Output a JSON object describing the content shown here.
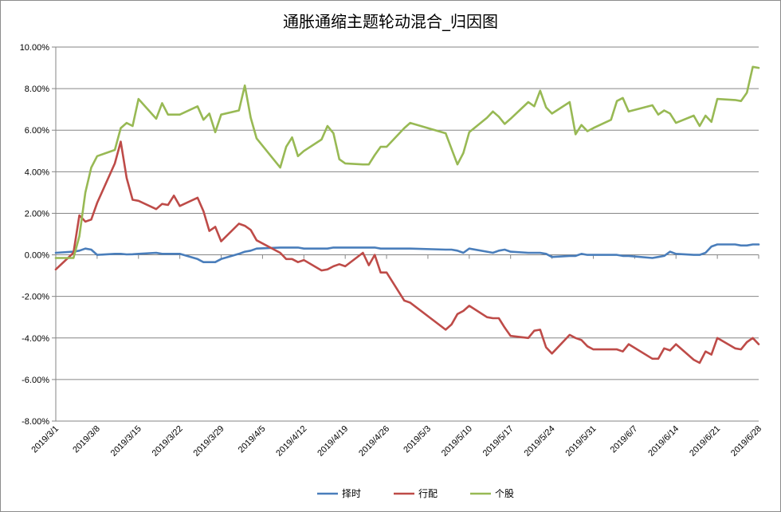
{
  "chart_data": {
    "type": "line",
    "title": "通胀通缩主题轮动混合_归因图",
    "xlabel": "",
    "ylabel": "",
    "ylim": [
      -8,
      10
    ],
    "y_ticks": [
      10,
      8,
      6,
      4,
      2,
      0,
      -2,
      -4,
      -6,
      -8
    ],
    "y_tick_labels": [
      "10.00%",
      "8.00%",
      "6.00%",
      "4.00%",
      "2.00%",
      "0.00%",
      "-2.00%",
      "-4.00%",
      "-6.00%",
      "-8.00%"
    ],
    "x_range": [
      "2019/3/1",
      "2019/6/28"
    ],
    "x_tick_labels": [
      "2019/3/1",
      "2019/3/8",
      "2019/3/15",
      "2019/3/22",
      "2019/3/29",
      "2019/4/5",
      "2019/4/12",
      "2019/4/19",
      "2019/4/26",
      "2019/5/3",
      "2019/5/10",
      "2019/5/17",
      "2019/5/24",
      "2019/5/31",
      "2019/6/7",
      "2019/6/14",
      "2019/6/21",
      "2019/6/28"
    ],
    "grid": "horizontal",
    "legend_position": "bottom",
    "series": [
      {
        "name": "择时",
        "color": "#4a7ebb",
        "points": [
          [
            "2019/3/1",
            0.1
          ],
          [
            "2019/3/4",
            0.15
          ],
          [
            "2019/3/5",
            0.2
          ],
          [
            "2019/3/6",
            0.3
          ],
          [
            "2019/3/7",
            0.25
          ],
          [
            "2019/3/8",
            0.0
          ],
          [
            "2019/3/11",
            0.05
          ],
          [
            "2019/3/12",
            0.05
          ],
          [
            "2019/3/13",
            0.02
          ],
          [
            "2019/3/14",
            0.03
          ],
          [
            "2019/3/15",
            0.05
          ],
          [
            "2019/3/18",
            0.1
          ],
          [
            "2019/3/19",
            0.05
          ],
          [
            "2019/3/20",
            0.05
          ],
          [
            "2019/3/21",
            0.05
          ],
          [
            "2019/3/22",
            0.05
          ],
          [
            "2019/3/25",
            -0.2
          ],
          [
            "2019/3/26",
            -0.35
          ],
          [
            "2019/3/27",
            -0.35
          ],
          [
            "2019/3/28",
            -0.35
          ],
          [
            "2019/3/29",
            -0.2
          ],
          [
            "2019/4/1",
            0.05
          ],
          [
            "2019/4/2",
            0.15
          ],
          [
            "2019/4/3",
            0.2
          ],
          [
            "2019/4/4",
            0.3
          ],
          [
            "2019/4/8",
            0.35
          ],
          [
            "2019/4/9",
            0.35
          ],
          [
            "2019/4/10",
            0.35
          ],
          [
            "2019/4/11",
            0.35
          ],
          [
            "2019/4/12",
            0.3
          ],
          [
            "2019/4/15",
            0.3
          ],
          [
            "2019/4/16",
            0.3
          ],
          [
            "2019/4/17",
            0.35
          ],
          [
            "2019/4/18",
            0.35
          ],
          [
            "2019/4/19",
            0.35
          ],
          [
            "2019/4/22",
            0.35
          ],
          [
            "2019/4/23",
            0.35
          ],
          [
            "2019/4/24",
            0.35
          ],
          [
            "2019/4/25",
            0.3
          ],
          [
            "2019/4/26",
            0.3
          ],
          [
            "2019/4/29",
            0.3
          ],
          [
            "2019/4/30",
            0.3
          ],
          [
            "2019/5/6",
            0.25
          ],
          [
            "2019/5/7",
            0.25
          ],
          [
            "2019/5/8",
            0.2
          ],
          [
            "2019/5/9",
            0.1
          ],
          [
            "2019/5/10",
            0.3
          ],
          [
            "2019/5/13",
            0.15
          ],
          [
            "2019/5/14",
            0.1
          ],
          [
            "2019/5/15",
            0.2
          ],
          [
            "2019/5/16",
            0.25
          ],
          [
            "2019/5/17",
            0.15
          ],
          [
            "2019/5/20",
            0.1
          ],
          [
            "2019/5/21",
            0.1
          ],
          [
            "2019/5/22",
            0.1
          ],
          [
            "2019/5/23",
            0.05
          ],
          [
            "2019/5/24",
            -0.1
          ],
          [
            "2019/5/27",
            -0.05
          ],
          [
            "2019/5/28",
            -0.05
          ],
          [
            "2019/5/29",
            0.05
          ],
          [
            "2019/5/30",
            0.0
          ],
          [
            "2019/5/31",
            0.0
          ],
          [
            "2019/6/3",
            0.0
          ],
          [
            "2019/6/4",
            0.0
          ],
          [
            "2019/6/5",
            -0.05
          ],
          [
            "2019/6/6",
            -0.05
          ],
          [
            "2019/6/10",
            -0.15
          ],
          [
            "2019/6/11",
            -0.1
          ],
          [
            "2019/6/12",
            -0.05
          ],
          [
            "2019/6/13",
            0.15
          ],
          [
            "2019/6/14",
            0.05
          ],
          [
            "2019/6/17",
            0.0
          ],
          [
            "2019/6/18",
            0.0
          ],
          [
            "2019/6/19",
            0.1
          ],
          [
            "2019/6/20",
            0.4
          ],
          [
            "2019/6/21",
            0.5
          ],
          [
            "2019/6/24",
            0.5
          ],
          [
            "2019/6/25",
            0.45
          ],
          [
            "2019/6/26",
            0.45
          ],
          [
            "2019/6/27",
            0.5
          ],
          [
            "2019/6/28",
            0.5
          ]
        ]
      },
      {
        "name": "行配",
        "color": "#be4b48",
        "points": [
          [
            "2019/3/1",
            -0.7
          ],
          [
            "2019/3/4",
            0.1
          ],
          [
            "2019/3/5",
            1.9
          ],
          [
            "2019/3/6",
            1.6
          ],
          [
            "2019/3/7",
            1.7
          ],
          [
            "2019/3/8",
            2.5
          ],
          [
            "2019/3/11",
            4.4
          ],
          [
            "2019/3/12",
            5.45
          ],
          [
            "2019/3/13",
            3.7
          ],
          [
            "2019/3/14",
            2.65
          ],
          [
            "2019/3/15",
            2.6
          ],
          [
            "2019/3/18",
            2.2
          ],
          [
            "2019/3/19",
            2.45
          ],
          [
            "2019/3/20",
            2.4
          ],
          [
            "2019/3/21",
            2.85
          ],
          [
            "2019/3/22",
            2.35
          ],
          [
            "2019/3/25",
            2.75
          ],
          [
            "2019/3/26",
            2.1
          ],
          [
            "2019/3/27",
            1.15
          ],
          [
            "2019/3/28",
            1.35
          ],
          [
            "2019/3/29",
            0.65
          ],
          [
            "2019/4/1",
            1.5
          ],
          [
            "2019/4/2",
            1.4
          ],
          [
            "2019/4/3",
            1.2
          ],
          [
            "2019/4/4",
            0.7
          ],
          [
            "2019/4/8",
            0.1
          ],
          [
            "2019/4/9",
            -0.2
          ],
          [
            "2019/4/10",
            -0.2
          ],
          [
            "2019/4/11",
            -0.35
          ],
          [
            "2019/4/12",
            -0.25
          ],
          [
            "2019/4/15",
            -0.75
          ],
          [
            "2019/4/16",
            -0.7
          ],
          [
            "2019/4/17",
            -0.55
          ],
          [
            "2019/4/18",
            -0.45
          ],
          [
            "2019/4/19",
            -0.55
          ],
          [
            "2019/4/22",
            0.1
          ],
          [
            "2019/4/23",
            -0.5
          ],
          [
            "2019/4/24",
            0.0
          ],
          [
            "2019/4/25",
            -0.85
          ],
          [
            "2019/4/26",
            -0.85
          ],
          [
            "2019/4/29",
            -2.2
          ],
          [
            "2019/4/30",
            -2.3
          ],
          [
            "2019/5/6",
            -3.6
          ],
          [
            "2019/5/7",
            -3.35
          ],
          [
            "2019/5/8",
            -2.85
          ],
          [
            "2019/5/9",
            -2.7
          ],
          [
            "2019/5/10",
            -2.45
          ],
          [
            "2019/5/13",
            -3.0
          ],
          [
            "2019/5/14",
            -3.05
          ],
          [
            "2019/5/15",
            -3.05
          ],
          [
            "2019/5/16",
            -3.5
          ],
          [
            "2019/5/17",
            -3.9
          ],
          [
            "2019/5/20",
            -4.0
          ],
          [
            "2019/5/21",
            -3.65
          ],
          [
            "2019/5/22",
            -3.6
          ],
          [
            "2019/5/23",
            -4.45
          ],
          [
            "2019/5/24",
            -4.75
          ],
          [
            "2019/5/27",
            -3.85
          ],
          [
            "2019/5/28",
            -4.0
          ],
          [
            "2019/5/29",
            -4.1
          ],
          [
            "2019/5/30",
            -4.4
          ],
          [
            "2019/5/31",
            -4.55
          ],
          [
            "2019/6/3",
            -4.55
          ],
          [
            "2019/6/4",
            -4.55
          ],
          [
            "2019/6/5",
            -4.65
          ],
          [
            "2019/6/6",
            -4.3
          ],
          [
            "2019/6/10",
            -5.0
          ],
          [
            "2019/6/11",
            -5.0
          ],
          [
            "2019/6/12",
            -4.5
          ],
          [
            "2019/6/13",
            -4.6
          ],
          [
            "2019/6/14",
            -4.3
          ],
          [
            "2019/6/17",
            -5.05
          ],
          [
            "2019/6/18",
            -5.2
          ],
          [
            "2019/6/19",
            -4.65
          ],
          [
            "2019/6/20",
            -4.8
          ],
          [
            "2019/6/21",
            -4.0
          ],
          [
            "2019/6/24",
            -4.5
          ],
          [
            "2019/6/25",
            -4.55
          ],
          [
            "2019/6/26",
            -4.2
          ],
          [
            "2019/6/27",
            -4.0
          ],
          [
            "2019/6/28",
            -4.3
          ]
        ]
      },
      {
        "name": "个股",
        "color": "#98b954",
        "points": [
          [
            "2019/3/1",
            -0.15
          ],
          [
            "2019/3/4",
            -0.15
          ],
          [
            "2019/3/5",
            0.9
          ],
          [
            "2019/3/6",
            3.0
          ],
          [
            "2019/3/7",
            4.2
          ],
          [
            "2019/3/8",
            4.75
          ],
          [
            "2019/3/11",
            5.05
          ],
          [
            "2019/3/12",
            6.1
          ],
          [
            "2019/3/13",
            6.35
          ],
          [
            "2019/3/14",
            6.2
          ],
          [
            "2019/3/15",
            7.5
          ],
          [
            "2019/3/18",
            6.55
          ],
          [
            "2019/3/19",
            7.3
          ],
          [
            "2019/3/20",
            6.75
          ],
          [
            "2019/3/21",
            6.75
          ],
          [
            "2019/3/22",
            6.75
          ],
          [
            "2019/3/25",
            7.15
          ],
          [
            "2019/3/26",
            6.5
          ],
          [
            "2019/3/27",
            6.8
          ],
          [
            "2019/3/28",
            5.9
          ],
          [
            "2019/3/29",
            6.75
          ],
          [
            "2019/4/1",
            6.95
          ],
          [
            "2019/4/2",
            8.15
          ],
          [
            "2019/4/3",
            6.6
          ],
          [
            "2019/4/4",
            5.6
          ],
          [
            "2019/4/8",
            4.2
          ],
          [
            "2019/4/9",
            5.2
          ],
          [
            "2019/4/10",
            5.65
          ],
          [
            "2019/4/11",
            4.75
          ],
          [
            "2019/4/12",
            5.0
          ],
          [
            "2019/4/15",
            5.55
          ],
          [
            "2019/4/16",
            6.2
          ],
          [
            "2019/4/17",
            5.85
          ],
          [
            "2019/4/18",
            4.6
          ],
          [
            "2019/4/19",
            4.4
          ],
          [
            "2019/4/22",
            4.35
          ],
          [
            "2019/4/23",
            4.35
          ],
          [
            "2019/4/24",
            4.8
          ],
          [
            "2019/4/25",
            5.2
          ],
          [
            "2019/4/26",
            5.2
          ],
          [
            "2019/4/29",
            6.1
          ],
          [
            "2019/4/30",
            6.35
          ],
          [
            "2019/5/6",
            5.85
          ],
          [
            "2019/5/7",
            5.1
          ],
          [
            "2019/5/8",
            4.35
          ],
          [
            "2019/5/9",
            4.9
          ],
          [
            "2019/5/10",
            5.9
          ],
          [
            "2019/5/13",
            6.6
          ],
          [
            "2019/5/14",
            6.9
          ],
          [
            "2019/5/15",
            6.65
          ],
          [
            "2019/5/16",
            6.3
          ],
          [
            "2019/5/17",
            6.55
          ],
          [
            "2019/5/20",
            7.35
          ],
          [
            "2019/5/21",
            7.15
          ],
          [
            "2019/5/22",
            7.9
          ],
          [
            "2019/5/23",
            7.1
          ],
          [
            "2019/5/24",
            6.8
          ],
          [
            "2019/5/27",
            7.35
          ],
          [
            "2019/5/28",
            5.8
          ],
          [
            "2019/5/29",
            6.25
          ],
          [
            "2019/5/30",
            5.95
          ],
          [
            "2019/5/31",
            6.1
          ],
          [
            "2019/6/3",
            6.5
          ],
          [
            "2019/6/4",
            7.4
          ],
          [
            "2019/6/5",
            7.55
          ],
          [
            "2019/6/6",
            6.9
          ],
          [
            "2019/6/10",
            7.2
          ],
          [
            "2019/6/11",
            6.75
          ],
          [
            "2019/6/12",
            6.95
          ],
          [
            "2019/6/13",
            6.8
          ],
          [
            "2019/6/14",
            6.35
          ],
          [
            "2019/6/17",
            6.7
          ],
          [
            "2019/6/18",
            6.2
          ],
          [
            "2019/6/19",
            6.7
          ],
          [
            "2019/6/20",
            6.4
          ],
          [
            "2019/6/21",
            7.5
          ],
          [
            "2019/6/24",
            7.45
          ],
          [
            "2019/6/25",
            7.4
          ],
          [
            "2019/6/26",
            7.8
          ],
          [
            "2019/6/27",
            9.05
          ],
          [
            "2019/6/28",
            9.0
          ]
        ]
      }
    ]
  }
}
